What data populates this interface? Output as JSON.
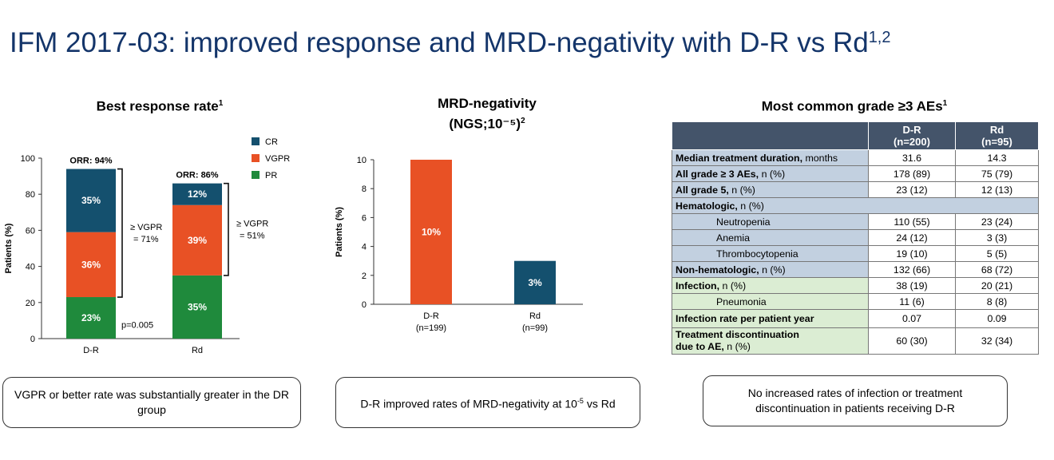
{
  "slide": {
    "title": "IFM 2017-03: improved response and MRD-negativity with D-R vs Rd",
    "title_sup": "1,2",
    "colors": {
      "title": "#14356a",
      "cr": "#14506e",
      "vgpr": "#e85125",
      "pr": "#1f8a3c",
      "header": "#44546a"
    }
  },
  "panels": {
    "response": {
      "title": "Best response rate",
      "sup": "1"
    },
    "mrd": {
      "title_line1": "MRD-negativity",
      "title_line2": "(NGS;10⁻⁵)",
      "sup": "2"
    },
    "aes": {
      "title": "Most common grade ≥3 AEs",
      "sup": "1"
    }
  },
  "chart_data": [
    {
      "type": "bar",
      "stacked": true,
      "title": "Best response rate",
      "ylabel": "Patients (%)",
      "ylim": [
        0,
        100
      ],
      "yticks": [
        0,
        20,
        40,
        60,
        80,
        100
      ],
      "categories": [
        "D-R",
        "Rd"
      ],
      "series": [
        {
          "name": "PR",
          "values": [
            23,
            35
          ],
          "labels": [
            "23%",
            "35%"
          ],
          "color": "#1f8a3c"
        },
        {
          "name": "VGPR",
          "values": [
            36,
            39
          ],
          "labels": [
            "36%",
            "39%"
          ],
          "color": "#e85125"
        },
        {
          "name": "CR",
          "values": [
            35,
            12
          ],
          "labels": [
            "35%",
            "12%"
          ],
          "color": "#14506e"
        }
      ],
      "legend": [
        "CR",
        "VGPR",
        "PR"
      ],
      "legend_position": "top-right",
      "orr_labels": [
        "ORR: 94%",
        "ORR: 86%"
      ],
      "bracket_labels": [
        [
          "≥ VGPR",
          "= 71%"
        ],
        [
          "≥ VGPR",
          "= 51%"
        ]
      ],
      "pvalue": "p=0.005"
    },
    {
      "type": "bar",
      "title": "MRD-negativity (NGS;10⁻⁵)",
      "ylabel": "Patients (%)",
      "ylim": [
        0,
        10
      ],
      "yticks": [
        0,
        2,
        4,
        6,
        8,
        10
      ],
      "categories": [
        "D-R",
        "Rd"
      ],
      "category_n": [
        "(n=199)",
        "(n=99)"
      ],
      "values": [
        10,
        3
      ],
      "labels": [
        "10%",
        "3%"
      ],
      "colors": [
        "#e85125",
        "#14506e"
      ]
    }
  ],
  "table": {
    "headers": [
      {
        "line1": "D-R",
        "line2": "(n=200)"
      },
      {
        "line1": "Rd",
        "line2": "(n=95)"
      }
    ],
    "rows": [
      {
        "bold": "Median treatment duration,",
        "rest": " months",
        "dr": "31.6",
        "rd": "14.3"
      },
      {
        "bold": "All grade ≥ 3 AEs,",
        "rest": " n (%)",
        "dr": "178 (89)",
        "rd": "75 (79)"
      },
      {
        "bold": "All grade 5,",
        "rest": " n (%)",
        "dr": "23 (12)",
        "rd": "12 (13)"
      },
      {
        "bold": "Hematologic,",
        "rest": " n (%)"
      },
      {
        "label": "Neutropenia",
        "dr": "110 (55)",
        "rd": "23 (24)"
      },
      {
        "label": "Anemia",
        "dr": "24 (12)",
        "rd": "3 (3)"
      },
      {
        "label": "Thrombocytopenia",
        "dr": "19 (10)",
        "rd": "5 (5)"
      },
      {
        "bold": "Non-hematologic,",
        "rest": " n (%)",
        "dr": "132 (66)",
        "rd": "68 (72)"
      },
      {
        "bold": "Infection,",
        "rest": " n (%)",
        "dr": "38 (19)",
        "rd": "20 (21)"
      },
      {
        "label": "Pneumonia",
        "dr": "11 (6)",
        "rd": "8 (8)"
      },
      {
        "bold": "Infection rate per patient year",
        "rest": "",
        "dr": "0.07",
        "rd": "0.09"
      },
      {
        "bold_line1": "Treatment discontinuation",
        "bold_line2": "due to AE,",
        "rest": " n (%)",
        "dr": "60 (30)",
        "rd": "32 (34)"
      }
    ]
  },
  "notes": {
    "left": "VGPR or better rate was substantially greater in the DR group",
    "middle_pre": "D-R improved rates of MRD-negativity at 10",
    "middle_sup": "-5",
    "middle_post": " vs Rd",
    "right": "No increased rates of infection or treatment discontinuation in patients receiving D-R"
  }
}
